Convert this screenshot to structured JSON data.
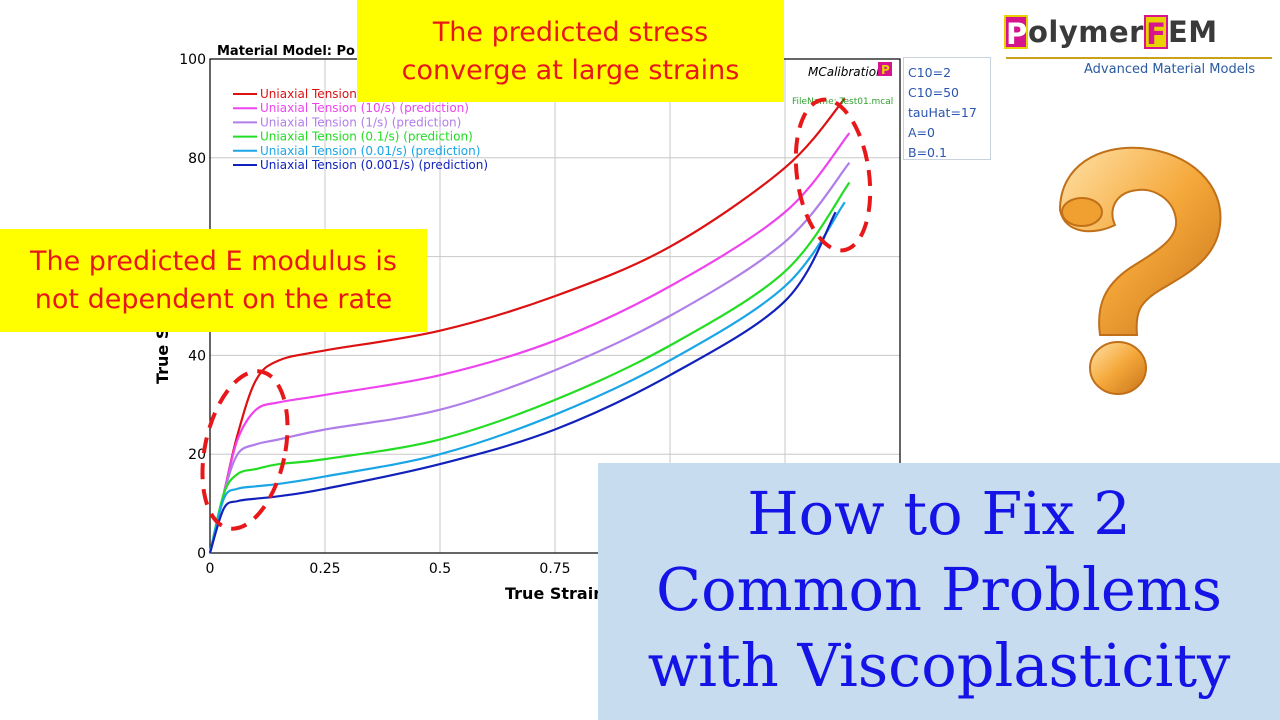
{
  "chart_data": {
    "type": "line",
    "title": "Material Model: Po",
    "xlabel": "True Strain",
    "ylabel": "True S",
    "xlim": [
      0,
      1.5
    ],
    "ylim": [
      0,
      100
    ],
    "xticks": [
      "0",
      "0.25",
      "0.5",
      "0.75"
    ],
    "yticks": [
      "0",
      "20",
      "40",
      "80",
      "100"
    ],
    "grid": true,
    "legend_position": "top-left",
    "series": [
      {
        "name": "Uniaxial Tension (",
        "color": "#dd1111",
        "x": [
          0,
          0.03,
          0.06,
          0.1,
          0.15,
          0.25,
          0.5,
          0.75,
          1.0,
          1.25,
          1.38
        ],
        "y": [
          0,
          12,
          24,
          35,
          39,
          41,
          45,
          52,
          62,
          78,
          92
        ]
      },
      {
        "name": "Uniaxial Tension (10/s) (prediction)",
        "color": "#ee44ee",
        "x": [
          0,
          0.03,
          0.06,
          0.1,
          0.15,
          0.25,
          0.5,
          0.75,
          1.0,
          1.25,
          1.39
        ],
        "y": [
          0,
          12,
          23,
          29,
          30.5,
          32,
          36,
          43,
          54,
          69,
          85
        ]
      },
      {
        "name": "Uniaxial Tension (1/s) (prediction)",
        "color": "#b07ee8",
        "x": [
          0,
          0.03,
          0.06,
          0.1,
          0.15,
          0.25,
          0.5,
          0.75,
          1.0,
          1.25,
          1.39
        ],
        "y": [
          0,
          12,
          20,
          22,
          23,
          25,
          29,
          37,
          48,
          63,
          79
        ]
      },
      {
        "name": "Uniaxial Tension (0.1/s) (prediction)",
        "color": "#22dd22",
        "x": [
          0,
          0.03,
          0.06,
          0.1,
          0.15,
          0.25,
          0.5,
          0.75,
          1.0,
          1.25,
          1.39
        ],
        "y": [
          0,
          12,
          16,
          17,
          18,
          19,
          23,
          31,
          42,
          57,
          75
        ]
      },
      {
        "name": "Uniaxial Tension (0.01/s) (prediction)",
        "color": "#1aa6e6",
        "x": [
          0,
          0.03,
          0.06,
          0.1,
          0.15,
          0.25,
          0.5,
          0.75,
          1.0,
          1.25,
          1.38
        ],
        "y": [
          0,
          11,
          13,
          13.5,
          14,
          15.5,
          20,
          28,
          39,
          54,
          71
        ]
      },
      {
        "name": "Uniaxial Tension (0.001/s) (prediction)",
        "color": "#1122bb",
        "x": [
          0,
          0.03,
          0.06,
          0.1,
          0.15,
          0.25,
          0.5,
          0.75,
          1.0,
          1.25,
          1.36
        ],
        "y": [
          0,
          9,
          10.5,
          11,
          11.5,
          13,
          18,
          25,
          36,
          51,
          69
        ]
      }
    ]
  },
  "chart_badge": {
    "text": "MCalibration",
    "icon": "P"
  },
  "file_name": "FileName: Test01.mcal",
  "params": [
    "C10=2",
    "C10=50",
    "tauHat=17",
    "A=0",
    "B=0.1"
  ],
  "callouts": {
    "top": [
      "The predicted stress",
      "converge at large strains"
    ],
    "left": [
      "The predicted E modulus is",
      "not dependent on the rate"
    ]
  },
  "logo": {
    "letter1": "P",
    "word1": "olymer",
    "letter2": "F",
    "word2": "EM",
    "subtitle": "Advanced Material Models"
  },
  "headline": [
    "How to Fix 2",
    "Common Problems",
    "with Viscoplasticity"
  ],
  "colors": {
    "callout_bg": "#ffff00",
    "callout_text": "#e8181a",
    "headline_bg": "#c8dcf0",
    "headline_text": "#1414e6",
    "ellipse": "#e8181a",
    "question_mark": "#f0a030"
  }
}
